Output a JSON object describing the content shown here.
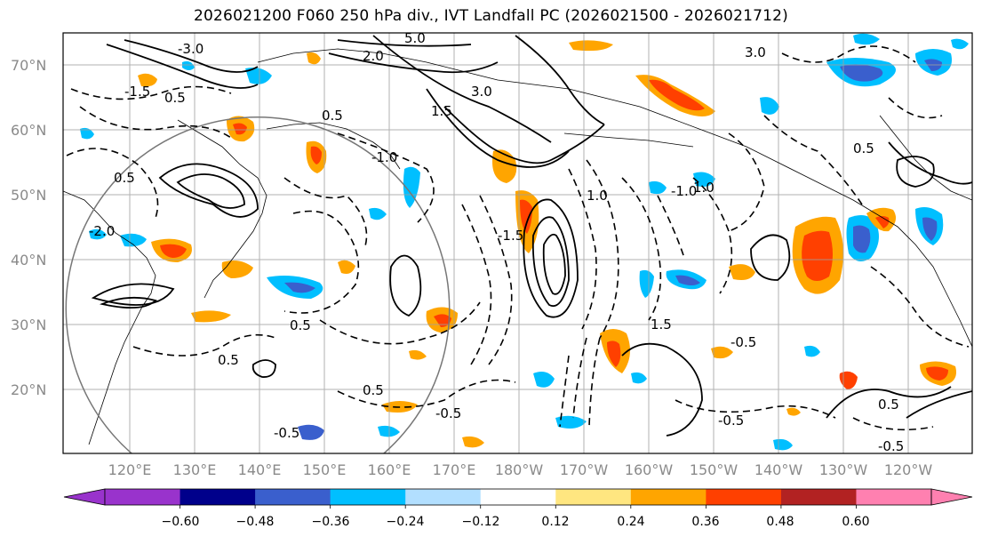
{
  "title": "2026021200 F060 250 hPa div., IVT Landfall PC (2026021500 - 2026021712)",
  "latitude_labels": [
    "70°N",
    "60°N",
    "50°N",
    "40°N",
    "30°N",
    "20°N"
  ],
  "longitude_labels": [
    "120°E",
    "130°E",
    "140°E",
    "150°E",
    "160°E",
    "170°E",
    "180°W",
    "170°W",
    "160°W",
    "150°W",
    "140°W",
    "130°W",
    "120°W"
  ],
  "colorbar": {
    "tick_labels": [
      "−0.60",
      "−0.48",
      "−0.36",
      "−0.24",
      "−0.12",
      "0.12",
      "0.24",
      "0.36",
      "0.48",
      "0.60"
    ],
    "colors": [
      "#9933cc",
      "#00008b",
      "#3a5fcd",
      "#00bfff",
      "#b2dfff",
      "#ffffff",
      "#ffe680",
      "#ffa500",
      "#ff4000",
      "#b22222",
      "#ff80b0"
    ]
  },
  "contour_labels": [
    "5.0",
    "3.0",
    "2.0",
    "1.5",
    "1.0",
    "0.5",
    "-0.5",
    "-1.0",
    "-1.5",
    "-2.0",
    "-3.0"
  ],
  "div_legend_colors": {
    "negative_strong": "#3a5fcd",
    "negative_mid": "#00bfff",
    "negative_weak": "#b2dfff",
    "positive_weak": "#ffe680",
    "positive_mid": "#ffa500",
    "positive_strong": "#ff4000"
  }
}
